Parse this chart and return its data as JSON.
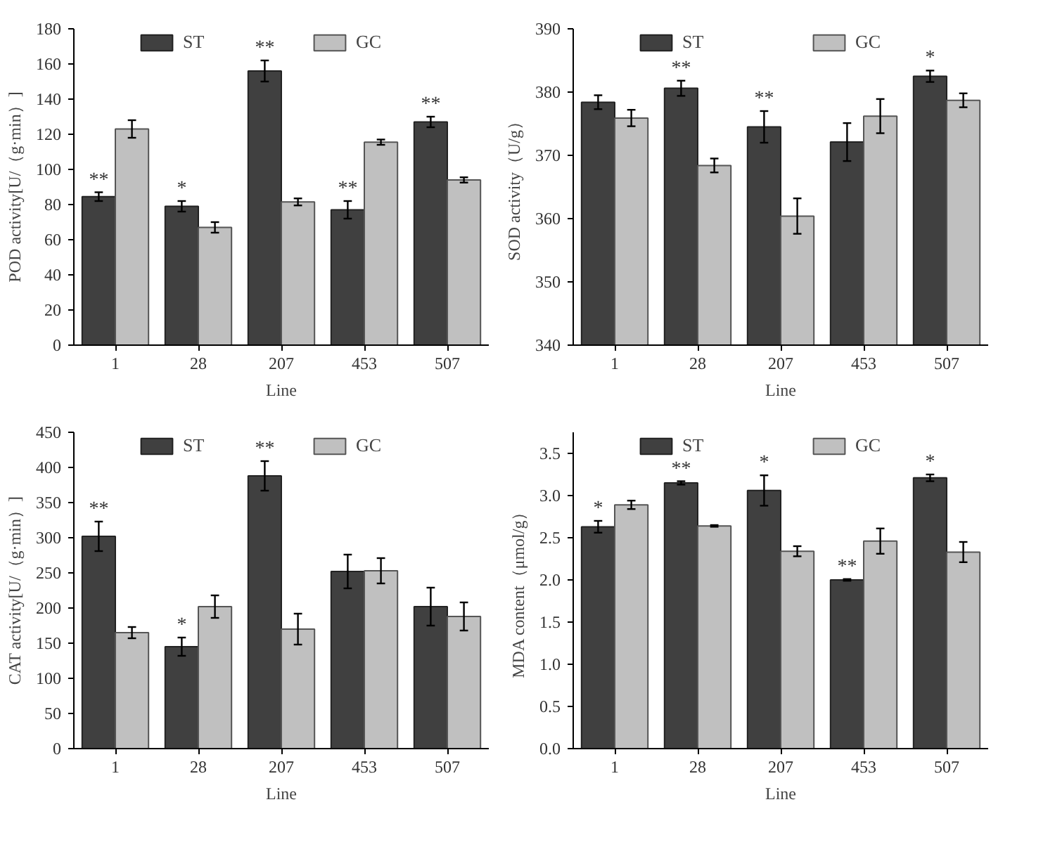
{
  "chart_data": [
    {
      "type": "bar",
      "categories": [
        "1",
        "28",
        "207",
        "453",
        "507"
      ],
      "xlabel": "Line",
      "ylabel": "POD activity[U/（g·min）]",
      "ylim": [
        0,
        180
      ],
      "yticks": [
        0,
        20,
        40,
        60,
        80,
        100,
        120,
        140,
        160,
        180
      ],
      "legend": "top",
      "series": [
        {
          "name": "ST",
          "color": "#404040",
          "values": [
            84.5,
            79,
            156,
            77,
            127
          ],
          "errors": [
            2.5,
            3,
            6,
            5,
            3
          ]
        },
        {
          "name": "GC",
          "color": "#c0c0c0",
          "values": [
            123,
            67,
            81.5,
            115.5,
            94
          ],
          "errors": [
            5,
            3,
            2,
            1.5,
            1.5
          ]
        }
      ],
      "annotations": [
        {
          "text": "**",
          "x": "1",
          "y": 84.5
        },
        {
          "text": "*",
          "x": "28",
          "y": 79
        },
        {
          "text": "**",
          "x": "207",
          "y": 156
        },
        {
          "text": "**",
          "x": "453",
          "y": 77
        },
        {
          "text": "**",
          "x": "507",
          "y": 127
        }
      ]
    },
    {
      "type": "bar",
      "categories": [
        "1",
        "28",
        "207",
        "453",
        "507"
      ],
      "xlabel": "Line",
      "ylabel": "SOD activity（U/g）",
      "ylim": [
        340,
        390
      ],
      "yticks": [
        340,
        350,
        360,
        370,
        380,
        390
      ],
      "legend": "top",
      "series": [
        {
          "name": "ST",
          "color": "#404040",
          "values": [
            378.4,
            380.6,
            374.5,
            372.1,
            382.5
          ],
          "errors": [
            1.1,
            1.2,
            2.5,
            3,
            0.9
          ]
        },
        {
          "name": "GC",
          "color": "#c0c0c0",
          "values": [
            375.9,
            368.4,
            360.4,
            376.2,
            378.7
          ],
          "errors": [
            1.3,
            1.1,
            2.8,
            2.7,
            1.1
          ]
        }
      ],
      "annotations": [
        {
          "text": "**",
          "x": "28",
          "y": 380.6
        },
        {
          "text": "**",
          "x": "207",
          "y": 374.5
        },
        {
          "text": "*",
          "x": "507",
          "y": 382.5
        }
      ]
    },
    {
      "type": "bar",
      "categories": [
        "1",
        "28",
        "207",
        "453",
        "507"
      ],
      "xlabel": "Line",
      "ylabel": "CAT activity[U/（g·min）]",
      "ylim": [
        0,
        450
      ],
      "yticks": [
        0,
        50,
        100,
        150,
        200,
        250,
        300,
        350,
        400,
        450
      ],
      "legend": "top",
      "series": [
        {
          "name": "ST",
          "color": "#404040",
          "values": [
            302,
            145,
            388,
            252,
            202
          ],
          "errors": [
            21,
            13,
            21,
            24,
            27
          ]
        },
        {
          "name": "GC",
          "color": "#c0c0c0",
          "values": [
            165,
            202,
            170,
            253,
            188
          ],
          "errors": [
            8,
            16,
            22,
            18,
            20
          ]
        }
      ],
      "annotations": [
        {
          "text": "**",
          "x": "1",
          "y": 302
        },
        {
          "text": "*",
          "x": "28",
          "y": 145
        },
        {
          "text": "**",
          "x": "207",
          "y": 388
        }
      ]
    },
    {
      "type": "bar",
      "categories": [
        "1",
        "28",
        "207",
        "453",
        "507"
      ],
      "xlabel": "Line",
      "ylabel": "MDA content（μmol/g）",
      "ylim": [
        0,
        3.75
      ],
      "yticks": [
        {
          "value": 0,
          "label": "0.0"
        },
        {
          "value": 0.5,
          "label": "0.5"
        },
        {
          "value": 1,
          "label": "1.0"
        },
        {
          "value": 1.5,
          "label": "1.5"
        },
        {
          "value": 2,
          "label": "2.0"
        },
        {
          "value": 2.5,
          "label": "2.5"
        },
        {
          "value": 3,
          "label": "3.0"
        },
        {
          "value": 3.5,
          "label": "3.5"
        }
      ],
      "legend": "top",
      "series": [
        {
          "name": "ST",
          "color": "#404040",
          "values": [
            2.63,
            3.15,
            3.06,
            2.0,
            3.21
          ],
          "errors": [
            0.07,
            0.02,
            0.18,
            0.01,
            0.04
          ]
        },
        {
          "name": "GC",
          "color": "#c0c0c0",
          "values": [
            2.89,
            2.64,
            2.34,
            2.46,
            2.33
          ],
          "errors": [
            0.05,
            0.01,
            0.06,
            0.15,
            0.12
          ]
        }
      ],
      "annotations": [
        {
          "text": "*",
          "x": "1",
          "y": 2.63
        },
        {
          "text": "**",
          "x": "28",
          "y": 3.15
        },
        {
          "text": "*",
          "x": "207",
          "y": 3.06
        },
        {
          "text": "**",
          "x": "453",
          "y": 2.0
        },
        {
          "text": "*",
          "x": "507",
          "y": 3.21
        }
      ]
    }
  ]
}
